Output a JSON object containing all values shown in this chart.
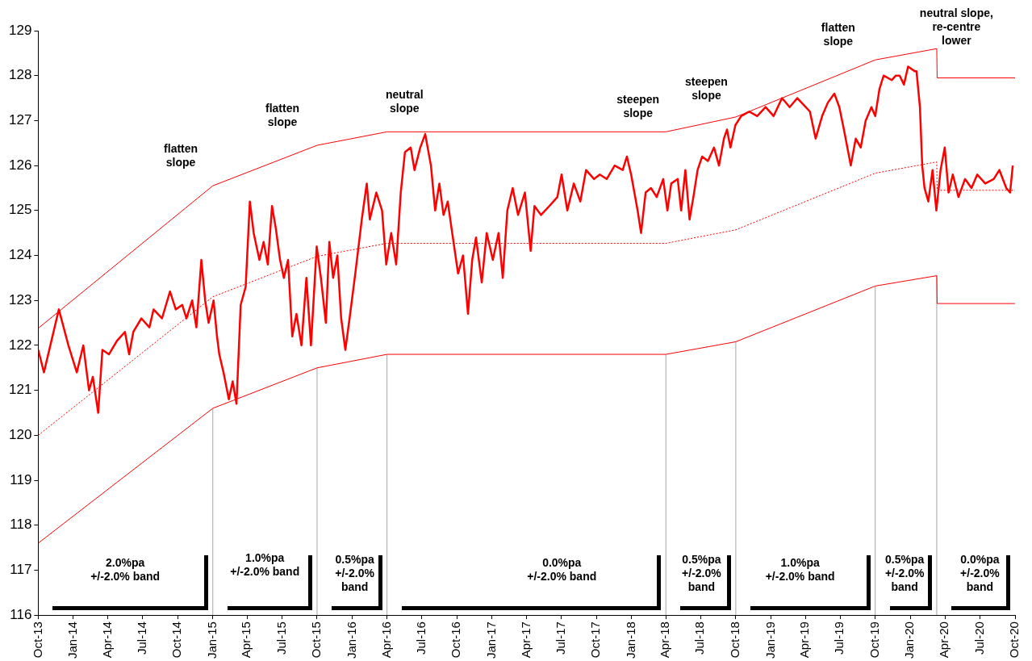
{
  "chart_data": {
    "type": "line",
    "xlim": [
      "2013-10-01",
      "2020-10-01"
    ],
    "xticks": [
      {
        "value": "2013-10-01",
        "label": "Oct-13"
      },
      {
        "value": "2014-01-01",
        "label": "Jan-14"
      },
      {
        "value": "2014-04-01",
        "label": "Apr-14"
      },
      {
        "value": "2014-07-01",
        "label": "Jul-14"
      },
      {
        "value": "2014-10-01",
        "label": "Oct-14"
      },
      {
        "value": "2015-01-01",
        "label": "Jan-15"
      },
      {
        "value": "2015-04-01",
        "label": "Apr-15"
      },
      {
        "value": "2015-07-01",
        "label": "Jul-15"
      },
      {
        "value": "2015-10-01",
        "label": "Oct-15"
      },
      {
        "value": "2016-01-01",
        "label": "Jan-16"
      },
      {
        "value": "2016-04-01",
        "label": "Apr-16"
      },
      {
        "value": "2016-07-01",
        "label": "Jul-16"
      },
      {
        "value": "2016-10-01",
        "label": "Oct-16"
      },
      {
        "value": "2017-01-01",
        "label": "Jan-17"
      },
      {
        "value": "2017-04-01",
        "label": "Apr-17"
      },
      {
        "value": "2017-07-01",
        "label": "Jul-17"
      },
      {
        "value": "2017-10-01",
        "label": "Oct-17"
      },
      {
        "value": "2018-01-01",
        "label": "Jan-18"
      },
      {
        "value": "2018-04-01",
        "label": "Apr-18"
      },
      {
        "value": "2018-07-01",
        "label": "Jul-18"
      },
      {
        "value": "2018-10-01",
        "label": "Oct-18"
      },
      {
        "value": "2019-01-01",
        "label": "Jan-19"
      },
      {
        "value": "2019-04-01",
        "label": "Apr-19"
      },
      {
        "value": "2019-07-01",
        "label": "Jul-19"
      },
      {
        "value": "2019-10-01",
        "label": "Oct-19"
      },
      {
        "value": "2020-01-01",
        "label": "Jan-20"
      },
      {
        "value": "2020-04-01",
        "label": "Apr-20"
      },
      {
        "value": "2020-07-01",
        "label": "Jul-20"
      },
      {
        "value": "2020-10-01",
        "label": "Oct-20"
      }
    ],
    "ylim": [
      116,
      129
    ],
    "yticks": [
      116,
      117,
      118,
      119,
      120,
      121,
      122,
      123,
      124,
      125,
      126,
      127,
      128,
      129
    ],
    "series": [
      {
        "color": "#ff0000",
        "x": [
          "2013-10-01",
          "2013-10-16",
          "2013-11-24",
          "2013-12-19",
          "2014-01-10",
          "2014-01-27",
          "2014-02-11",
          "2014-02-21",
          "2014-03-07",
          "2014-03-18",
          "2014-04-04",
          "2014-04-25",
          "2014-05-16",
          "2014-05-27",
          "2014-06-07",
          "2014-06-28",
          "2014-07-19",
          "2014-07-30",
          "2014-08-21",
          "2014-09-11",
          "2014-09-26",
          "2014-10-13",
          "2014-10-24",
          "2014-11-08",
          "2014-11-19",
          "2014-12-02",
          "2014-12-12",
          "2014-12-21",
          "2015-01-03",
          "2015-01-12",
          "2015-01-18",
          "2015-01-29",
          "2015-02-12",
          "2015-02-22",
          "2015-03-04",
          "2015-03-15",
          "2015-03-28",
          "2015-04-08",
          "2015-04-18",
          "2015-05-03",
          "2015-05-14",
          "2015-05-25",
          "2015-06-05",
          "2015-06-15",
          "2015-06-26",
          "2015-07-06",
          "2015-07-17",
          "2015-07-28",
          "2015-08-08",
          "2015-08-21",
          "2015-09-03",
          "2015-09-15",
          "2015-09-30",
          "2015-10-11",
          "2015-10-24",
          "2015-11-02",
          "2015-11-12",
          "2015-11-23",
          "2015-12-03",
          "2015-12-14",
          "2015-12-25",
          "2016-01-09",
          "2016-01-26",
          "2016-02-08",
          "2016-02-16",
          "2016-03-04",
          "2016-03-19",
          "2016-03-30",
          "2016-04-12",
          "2016-04-25",
          "2016-05-07",
          "2016-05-18",
          "2016-06-02",
          "2016-06-12",
          "2016-06-27",
          "2016-07-10",
          "2016-07-25",
          "2016-08-05",
          "2016-08-16",
          "2016-08-27",
          "2016-09-07",
          "2016-09-17",
          "2016-10-04",
          "2016-10-17",
          "2016-10-30",
          "2016-11-10",
          "2016-11-20",
          "2016-12-05",
          "2016-12-18",
          "2017-01-03",
          "2017-01-18",
          "2017-01-29",
          "2017-02-10",
          "2017-02-24",
          "2017-03-10",
          "2017-03-28",
          "2017-04-12",
          "2017-04-22",
          "2017-05-09",
          "2017-05-31",
          "2017-06-21",
          "2017-07-02",
          "2017-07-17",
          "2017-08-03",
          "2017-08-20",
          "2017-09-04",
          "2017-09-25",
          "2017-10-10",
          "2017-10-28",
          "2017-11-18",
          "2017-12-09",
          "2017-12-20",
          "2017-12-31",
          "2018-01-17",
          "2018-01-26",
          "2018-02-07",
          "2018-02-21",
          "2018-03-08",
          "2018-03-25",
          "2018-04-05",
          "2018-04-15",
          "2018-05-02",
          "2018-05-11",
          "2018-05-22",
          "2018-06-02",
          "2018-06-12",
          "2018-06-23",
          "2018-07-05",
          "2018-07-20",
          "2018-08-05",
          "2018-08-18",
          "2018-08-31",
          "2018-09-08",
          "2018-09-17",
          "2018-09-30",
          "2018-10-15",
          "2018-11-05",
          "2018-11-26",
          "2018-12-18",
          "2019-01-08",
          "2019-01-30",
          "2019-02-19",
          "2019-03-11",
          "2019-04-02",
          "2019-04-13",
          "2019-04-28",
          "2019-05-15",
          "2019-05-30",
          "2019-06-16",
          "2019-06-29",
          "2019-07-11",
          "2019-07-29",
          "2019-08-11",
          "2019-08-24",
          "2019-09-06",
          "2019-09-21",
          "2019-10-01",
          "2019-10-12",
          "2019-10-23",
          "2019-11-13",
          "2019-11-24",
          "2019-12-04",
          "2019-12-15",
          "2019-12-26",
          "2020-01-12",
          "2020-01-17",
          "2020-01-26",
          "2020-02-01",
          "2020-02-07",
          "2020-02-17",
          "2020-02-28",
          "2020-03-09",
          "2020-03-20",
          "2020-03-31",
          "2020-04-10",
          "2020-04-21",
          "2020-05-06",
          "2020-05-23",
          "2020-06-09",
          "2020-06-24",
          "2020-07-15",
          "2020-08-06",
          "2020-08-21",
          "2020-09-08",
          "2020-09-18",
          "2020-09-25"
        ],
        "values": [
          121.9,
          121.4,
          122.8,
          122.0,
          121.4,
          122.0,
          121.0,
          121.3,
          120.5,
          121.9,
          121.8,
          122.1,
          122.3,
          121.8,
          122.3,
          122.6,
          122.4,
          122.8,
          122.6,
          123.2,
          122.8,
          122.9,
          122.6,
          123.0,
          122.4,
          123.9,
          123.0,
          122.5,
          123.0,
          122.2,
          121.8,
          121.4,
          120.8,
          121.2,
          120.7,
          122.9,
          123.3,
          125.2,
          124.5,
          123.9,
          124.3,
          123.8,
          125.1,
          124.6,
          123.9,
          123.5,
          123.9,
          122.2,
          122.7,
          122.0,
          123.5,
          122.0,
          124.2,
          123.5,
          122.5,
          124.3,
          123.5,
          124.0,
          122.6,
          121.9,
          122.6,
          123.6,
          124.8,
          125.6,
          124.8,
          125.4,
          125.0,
          123.8,
          124.5,
          123.8,
          125.4,
          126.3,
          126.4,
          125.9,
          126.4,
          126.7,
          126.0,
          125.0,
          125.6,
          124.9,
          125.2,
          124.6,
          123.6,
          124.0,
          122.7,
          123.9,
          124.4,
          123.4,
          124.5,
          123.9,
          124.5,
          123.5,
          125.0,
          125.5,
          124.9,
          125.4,
          124.1,
          125.1,
          124.9,
          125.1,
          125.3,
          125.8,
          125.0,
          125.6,
          125.2,
          125.9,
          125.7,
          125.8,
          125.7,
          126.0,
          125.9,
          126.2,
          125.8,
          125.0,
          124.5,
          125.4,
          125.5,
          125.3,
          125.7,
          125.0,
          125.6,
          125.7,
          125.0,
          125.9,
          124.8,
          125.3,
          125.9,
          126.2,
          126.1,
          126.4,
          126.0,
          126.6,
          126.8,
          126.4,
          126.9,
          127.1,
          127.2,
          127.1,
          127.3,
          127.1,
          127.5,
          127.3,
          127.5,
          127.3,
          127.2,
          126.6,
          127.1,
          127.4,
          127.6,
          127.3,
          126.8,
          126.0,
          126.6,
          126.4,
          127.0,
          127.3,
          127.1,
          127.7,
          128.0,
          127.9,
          128.0,
          128.0,
          127.8,
          128.2,
          128.1,
          128.1,
          127.3,
          126.0,
          125.5,
          125.2,
          125.9,
          125.0,
          125.9,
          126.4,
          125.4,
          125.8,
          125.3,
          125.7,
          125.5,
          125.8,
          125.6,
          125.7,
          125.9,
          125.5,
          125.4,
          126.0
        ]
      },
      {
        "color": "#ff0000",
        "x": [
          "2013-10-01",
          "2015-01-01",
          "2015-10-01",
          "2016-04-01",
          "2018-04-01",
          "2018-10-01",
          "2019-10-01",
          "2020-03-10",
          "2020-03-11",
          "2020-10-01"
        ],
        "values": [
          122.38,
          125.55,
          126.45,
          126.75,
          126.75,
          127.08,
          128.35,
          128.6,
          127.95,
          127.95
        ]
      },
      {
        "color": "#ff0000",
        "line_style": "dotted",
        "x": [
          "2013-10-01",
          "2015-01-01",
          "2015-10-01",
          "2016-04-01",
          "2018-04-01",
          "2018-10-01",
          "2019-10-01",
          "2020-03-10",
          "2020-03-11",
          "2020-10-01"
        ],
        "values": [
          120.0,
          123.08,
          123.98,
          124.27,
          124.27,
          124.57,
          125.83,
          126.08,
          125.45,
          125.45
        ]
      },
      {
        "color": "#ff0000",
        "x": [
          "2013-10-01",
          "2015-01-01",
          "2015-10-01",
          "2016-04-01",
          "2018-04-01",
          "2018-10-01",
          "2019-10-01",
          "2020-03-10",
          "2020-03-11",
          "2020-10-01"
        ],
        "values": [
          117.6,
          120.6,
          121.5,
          121.8,
          121.8,
          122.08,
          123.32,
          123.55,
          122.93,
          122.93
        ]
      }
    ],
    "ref_lines": [
      {
        "axis": "x",
        "value": "2015-01-01",
        "color": "#a6a6a6"
      },
      {
        "axis": "x",
        "value": "2015-10-01",
        "color": "#a6a6a6"
      },
      {
        "axis": "x",
        "value": "2016-04-01",
        "color": "#a6a6a6"
      },
      {
        "axis": "x",
        "value": "2018-04-01",
        "color": "#a6a6a6"
      },
      {
        "axis": "x",
        "value": "2018-10-01",
        "color": "#a6a6a6"
      },
      {
        "axis": "x",
        "value": "2019-10-01",
        "color": "#a6a6a6"
      },
      {
        "axis": "x",
        "value": "2020-03-10",
        "color": "#a6a6a6"
      }
    ],
    "annotations": [
      "flatten\nslope",
      "flatten\nslope",
      "neutral\nslope",
      "steepen\nslope",
      "steepen\nslope",
      "flatten\nslope",
      "neutral slope,\nre-centre\nlower",
      "2.0%pa\n+/-2.0% band",
      "1.0%pa\n+/-2.0% band",
      "0.5%pa\n+/-2.0%\nband",
      "0.0%pa\n+/-2.0% band",
      "0.5%pa\n+/-2.0%\nband",
      "1.0%pa\n+/-2.0% band",
      "0.5%pa\n+/-2.0%\nband",
      "0.0%pa\n+/-2.0%\nband"
    ]
  }
}
